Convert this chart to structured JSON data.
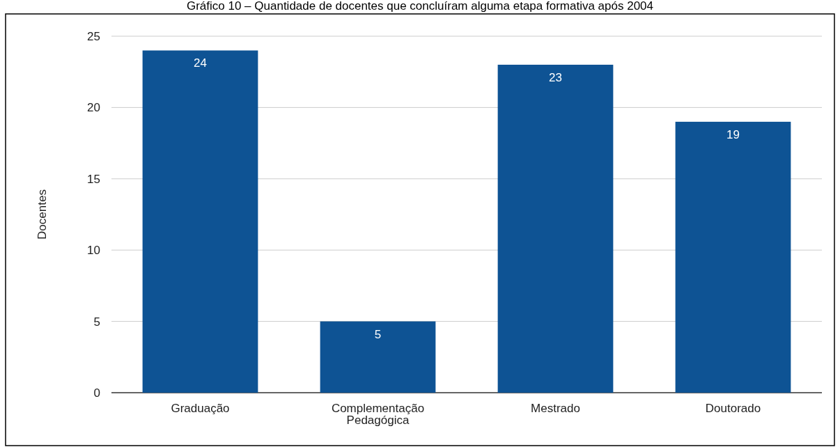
{
  "chart_data": {
    "type": "bar",
    "title": "Gráfico 10 – Quantidade de docentes que concluíram alguma etapa formativa após 2004",
    "ylabel": "Docentes",
    "categories": [
      "Graduação",
      "Complementação Pedagógica",
      "Mestrado",
      "Doutorado"
    ],
    "values": [
      24,
      5,
      23,
      19
    ],
    "color": "#0e5394",
    "ylim": [
      0,
      25
    ],
    "yticks": [
      0,
      5,
      10,
      15,
      20,
      25
    ],
    "grid": "y",
    "data_labels": true
  }
}
